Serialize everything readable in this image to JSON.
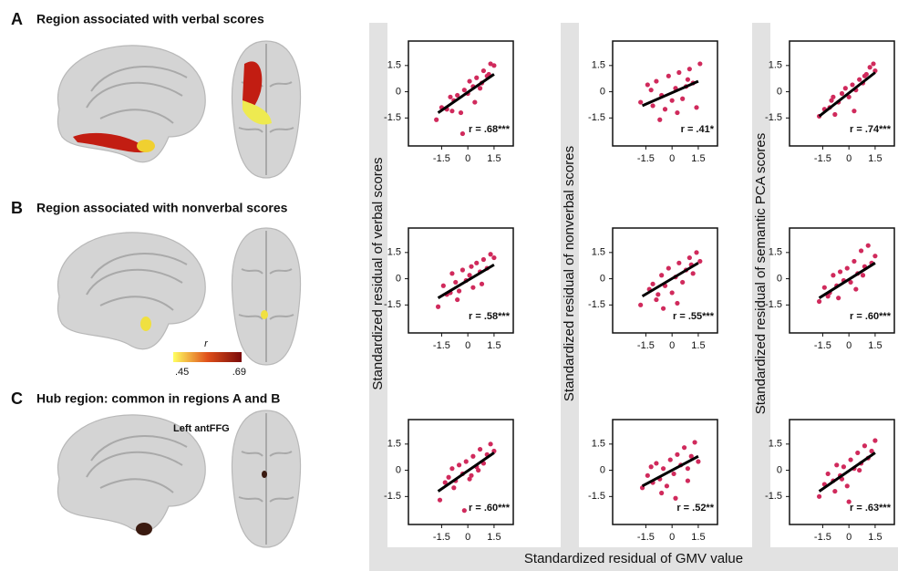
{
  "panels": [
    {
      "letter": "A",
      "title": "Region associated with verbal scores"
    },
    {
      "letter": "B",
      "title": "Region associated with nonverbal scores"
    },
    {
      "letter": "C",
      "title": "Hub region: common in regions A and B"
    }
  ],
  "colorbar": {
    "label": "r",
    "min": ".45",
    "max": ".69"
  },
  "hub_label": "Left antFFG",
  "x_label": "Standardized residual of GMV value",
  "y_labels": [
    "Standardized residual of verbal scores",
    "Standardized residual of nonverbal scores",
    "Standardized residual of semantic PCA scores"
  ],
  "chart_data": [
    {
      "type": "scatter",
      "annotation": "r = .68***",
      "color": "#d02a5c",
      "x": [
        -1.8,
        -1.5,
        -1.2,
        -1.0,
        -0.8,
        -0.6,
        -0.4,
        -0.2,
        0,
        0.1,
        0.3,
        0.5,
        0.7,
        0.9,
        1.1,
        1.3,
        1.5,
        -0.9,
        0.4,
        1.2,
        -0.3,
        0.8
      ],
      "values": [
        -1.6,
        -0.9,
        -1.0,
        -0.3,
        -0.5,
        -0.2,
        -1.2,
        0.1,
        -0.1,
        0.6,
        0.3,
        0.8,
        0.2,
        1.2,
        0.9,
        1.6,
        1.5,
        -1.1,
        -0.6,
        1.0,
        -2.4,
        0.5
      ],
      "fit_x": [
        -1.7,
        1.5
      ],
      "fit_y": [
        -1.2,
        1.0
      ],
      "xlim": [
        -3.4,
        2.6
      ],
      "ylim": [
        -3.1,
        2.9
      ],
      "xticks": [
        -1.5,
        0,
        1.5
      ],
      "yticks": [
        -1.5,
        0,
        1.5
      ]
    },
    {
      "type": "scatter",
      "annotation": "r = .41*",
      "color": "#d02a5c",
      "x": [
        -1.8,
        -1.4,
        -1.1,
        -0.9,
        -0.6,
        -0.4,
        -0.2,
        0,
        0.2,
        0.4,
        0.6,
        0.8,
        1.0,
        1.2,
        1.4,
        1.6,
        -0.7,
        0.3,
        -1.2,
        0.9
      ],
      "values": [
        -0.6,
        0.4,
        -0.8,
        0.6,
        -0.2,
        -1.0,
        0.9,
        -0.5,
        0.2,
        1.1,
        -0.4,
        0.3,
        1.3,
        0.5,
        -0.9,
        1.6,
        -1.6,
        -1.2,
        0.1,
        0.7
      ],
      "fit_x": [
        -1.7,
        1.5
      ],
      "fit_y": [
        -0.8,
        0.6
      ],
      "xlim": [
        -3.4,
        2.6
      ],
      "ylim": [
        -3.1,
        2.9
      ],
      "xticks": [
        -1.5,
        0,
        1.5
      ],
      "yticks": [
        -1.5,
        0,
        1.5
      ]
    },
    {
      "type": "scatter",
      "annotation": "r = .74***",
      "color": "#d02a5c",
      "x": [
        -1.7,
        -1.4,
        -1.1,
        -0.9,
        -0.6,
        -0.4,
        -0.2,
        0,
        0.2,
        0.4,
        0.6,
        0.8,
        1.0,
        1.2,
        1.4,
        -0.8,
        0.3,
        0.9,
        -1.0,
        1.5
      ],
      "values": [
        -1.4,
        -1.0,
        -0.9,
        -0.3,
        -0.6,
        -0.1,
        0.2,
        -0.3,
        0.4,
        0.1,
        0.7,
        0.5,
        1.0,
        1.4,
        1.6,
        -1.3,
        -1.1,
        0.9,
        -0.5,
        1.2
      ],
      "fit_x": [
        -1.7,
        1.5
      ],
      "fit_y": [
        -1.4,
        1.1
      ],
      "xlim": [
        -3.4,
        2.6
      ],
      "ylim": [
        -3.1,
        2.9
      ],
      "xticks": [
        -1.5,
        0,
        1.5
      ],
      "yticks": [
        -1.5,
        0,
        1.5
      ]
    },
    {
      "type": "scatter",
      "annotation": "r = .58***",
      "color": "#d02a5c",
      "x": [
        -1.7,
        -1.4,
        -1.2,
        -0.9,
        -0.7,
        -0.5,
        -0.3,
        -0.1,
        0.1,
        0.3,
        0.5,
        0.7,
        0.9,
        1.1,
        1.3,
        1.5,
        -0.6,
        0.2,
        0.8,
        -1.0
      ],
      "values": [
        -1.6,
        -0.4,
        -0.9,
        0.3,
        -0.2,
        -0.7,
        0.5,
        -0.1,
        0.2,
        -0.5,
        0.9,
        0.4,
        1.1,
        0.6,
        1.4,
        1.2,
        -1.2,
        0.7,
        -0.3,
        -0.8
      ],
      "fit_x": [
        -1.7,
        1.5
      ],
      "fit_y": [
        -1.1,
        0.8
      ],
      "xlim": [
        -3.4,
        2.6
      ],
      "ylim": [
        -3.1,
        2.9
      ],
      "xticks": [
        -1.5,
        0,
        1.5
      ],
      "yticks": [
        -1.5,
        0,
        1.5
      ]
    },
    {
      "type": "scatter",
      "annotation": "r = .55***",
      "color": "#d02a5c",
      "x": [
        -1.8,
        -1.3,
        -1.1,
        -0.8,
        -0.6,
        -0.4,
        -0.2,
        0,
        0.2,
        0.4,
        0.6,
        0.8,
        1.0,
        1.2,
        1.4,
        1.6,
        -0.9,
        0.3,
        -0.5,
        1.1
      ],
      "values": [
        -1.5,
        -0.6,
        -0.3,
        -0.9,
        0.2,
        -0.4,
        0.6,
        -0.8,
        0.1,
        0.9,
        -0.2,
        0.5,
        1.2,
        0.3,
        1.5,
        1.0,
        -1.2,
        -1.4,
        -1.7,
        0.8
      ],
      "fit_x": [
        -1.7,
        1.5
      ],
      "fit_y": [
        -1.0,
        0.9
      ],
      "xlim": [
        -3.4,
        2.6
      ],
      "ylim": [
        -3.1,
        2.9
      ],
      "xticks": [
        -1.5,
        0,
        1.5
      ],
      "yticks": [
        -1.5,
        0,
        1.5
      ]
    },
    {
      "type": "scatter",
      "annotation": "r = .60***",
      "color": "#d02a5c",
      "x": [
        -1.7,
        -1.4,
        -1.1,
        -0.9,
        -0.7,
        -0.5,
        -0.3,
        -0.1,
        0.1,
        0.3,
        0.5,
        0.7,
        0.9,
        1.1,
        1.3,
        1.5,
        -0.6,
        0.4,
        0.8,
        -1.2
      ],
      "values": [
        -1.3,
        -0.5,
        -0.8,
        0.2,
        -0.4,
        0.4,
        -0.1,
        0.6,
        -0.2,
        1.0,
        0.3,
        1.6,
        0.7,
        1.9,
        0.9,
        1.3,
        -1.1,
        -0.6,
        0.2,
        -1.0
      ],
      "fit_x": [
        -1.7,
        1.5
      ],
      "fit_y": [
        -1.1,
        0.9
      ],
      "xlim": [
        -3.4,
        2.6
      ],
      "ylim": [
        -3.1,
        2.9
      ],
      "xticks": [
        -1.5,
        0,
        1.5
      ],
      "yticks": [
        -1.5,
        0,
        1.5
      ]
    },
    {
      "type": "scatter",
      "annotation": "r = .60***",
      "color": "#d02a5c",
      "x": [
        -1.6,
        -1.3,
        -1.1,
        -0.9,
        -0.7,
        -0.5,
        -0.3,
        -0.1,
        0.1,
        0.3,
        0.5,
        0.7,
        0.9,
        1.1,
        1.3,
        1.5,
        -0.8,
        0.2,
        0.6,
        -0.2
      ],
      "values": [
        -1.7,
        -0.7,
        -0.4,
        0.1,
        -0.6,
        0.3,
        -0.2,
        0.5,
        -0.5,
        0.8,
        0.2,
        1.2,
        0.4,
        0.9,
        1.5,
        1.1,
        -1.0,
        -0.3,
        0.0,
        -2.3
      ],
      "fit_x": [
        -1.7,
        1.5
      ],
      "fit_y": [
        -1.2,
        1.0
      ],
      "xlim": [
        -3.4,
        2.6
      ],
      "ylim": [
        -3.1,
        2.9
      ],
      "xticks": [
        -1.5,
        0,
        1.5
      ],
      "yticks": [
        -1.5,
        0,
        1.5
      ]
    },
    {
      "type": "scatter",
      "annotation": "r = .52**",
      "color": "#d02a5c",
      "x": [
        -1.7,
        -1.4,
        -1.1,
        -0.9,
        -0.7,
        -0.5,
        -0.3,
        -0.1,
        0.1,
        0.3,
        0.5,
        0.7,
        0.9,
        1.1,
        1.3,
        1.5,
        -0.6,
        0.2,
        0.9,
        -1.2
      ],
      "values": [
        -1.0,
        -0.3,
        -0.7,
        0.4,
        -0.5,
        0.1,
        -0.9,
        0.6,
        -0.2,
        0.9,
        0.3,
        1.3,
        0.1,
        0.8,
        1.6,
        0.5,
        -1.3,
        -1.6,
        -0.6,
        0.2
      ],
      "fit_x": [
        -1.7,
        1.5
      ],
      "fit_y": [
        -0.9,
        0.8
      ],
      "xlim": [
        -3.4,
        2.6
      ],
      "ylim": [
        -3.1,
        2.9
      ],
      "xticks": [
        -1.5,
        0,
        1.5
      ],
      "yticks": [
        -1.5,
        0,
        1.5
      ]
    },
    {
      "type": "scatter",
      "annotation": "r = .63***",
      "color": "#d02a5c",
      "x": [
        -1.7,
        -1.4,
        -1.2,
        -0.9,
        -0.7,
        -0.5,
        -0.3,
        -0.1,
        0.1,
        0.3,
        0.5,
        0.7,
        0.9,
        1.1,
        1.3,
        1.5,
        -0.8,
        0.0,
        0.6,
        -0.4
      ],
      "values": [
        -1.5,
        -0.8,
        -0.2,
        -0.6,
        0.3,
        -0.3,
        0.2,
        -0.9,
        0.6,
        0.1,
        1.0,
        0.4,
        1.4,
        0.7,
        1.1,
        1.7,
        -1.2,
        -1.8,
        0.0,
        -0.5
      ],
      "fit_x": [
        -1.7,
        1.5
      ],
      "fit_y": [
        -1.2,
        1.0
      ],
      "xlim": [
        -3.4,
        2.6
      ],
      "ylim": [
        -3.1,
        2.9
      ],
      "xticks": [
        -1.5,
        0,
        1.5
      ],
      "yticks": [
        -1.5,
        0,
        1.5
      ]
    }
  ]
}
